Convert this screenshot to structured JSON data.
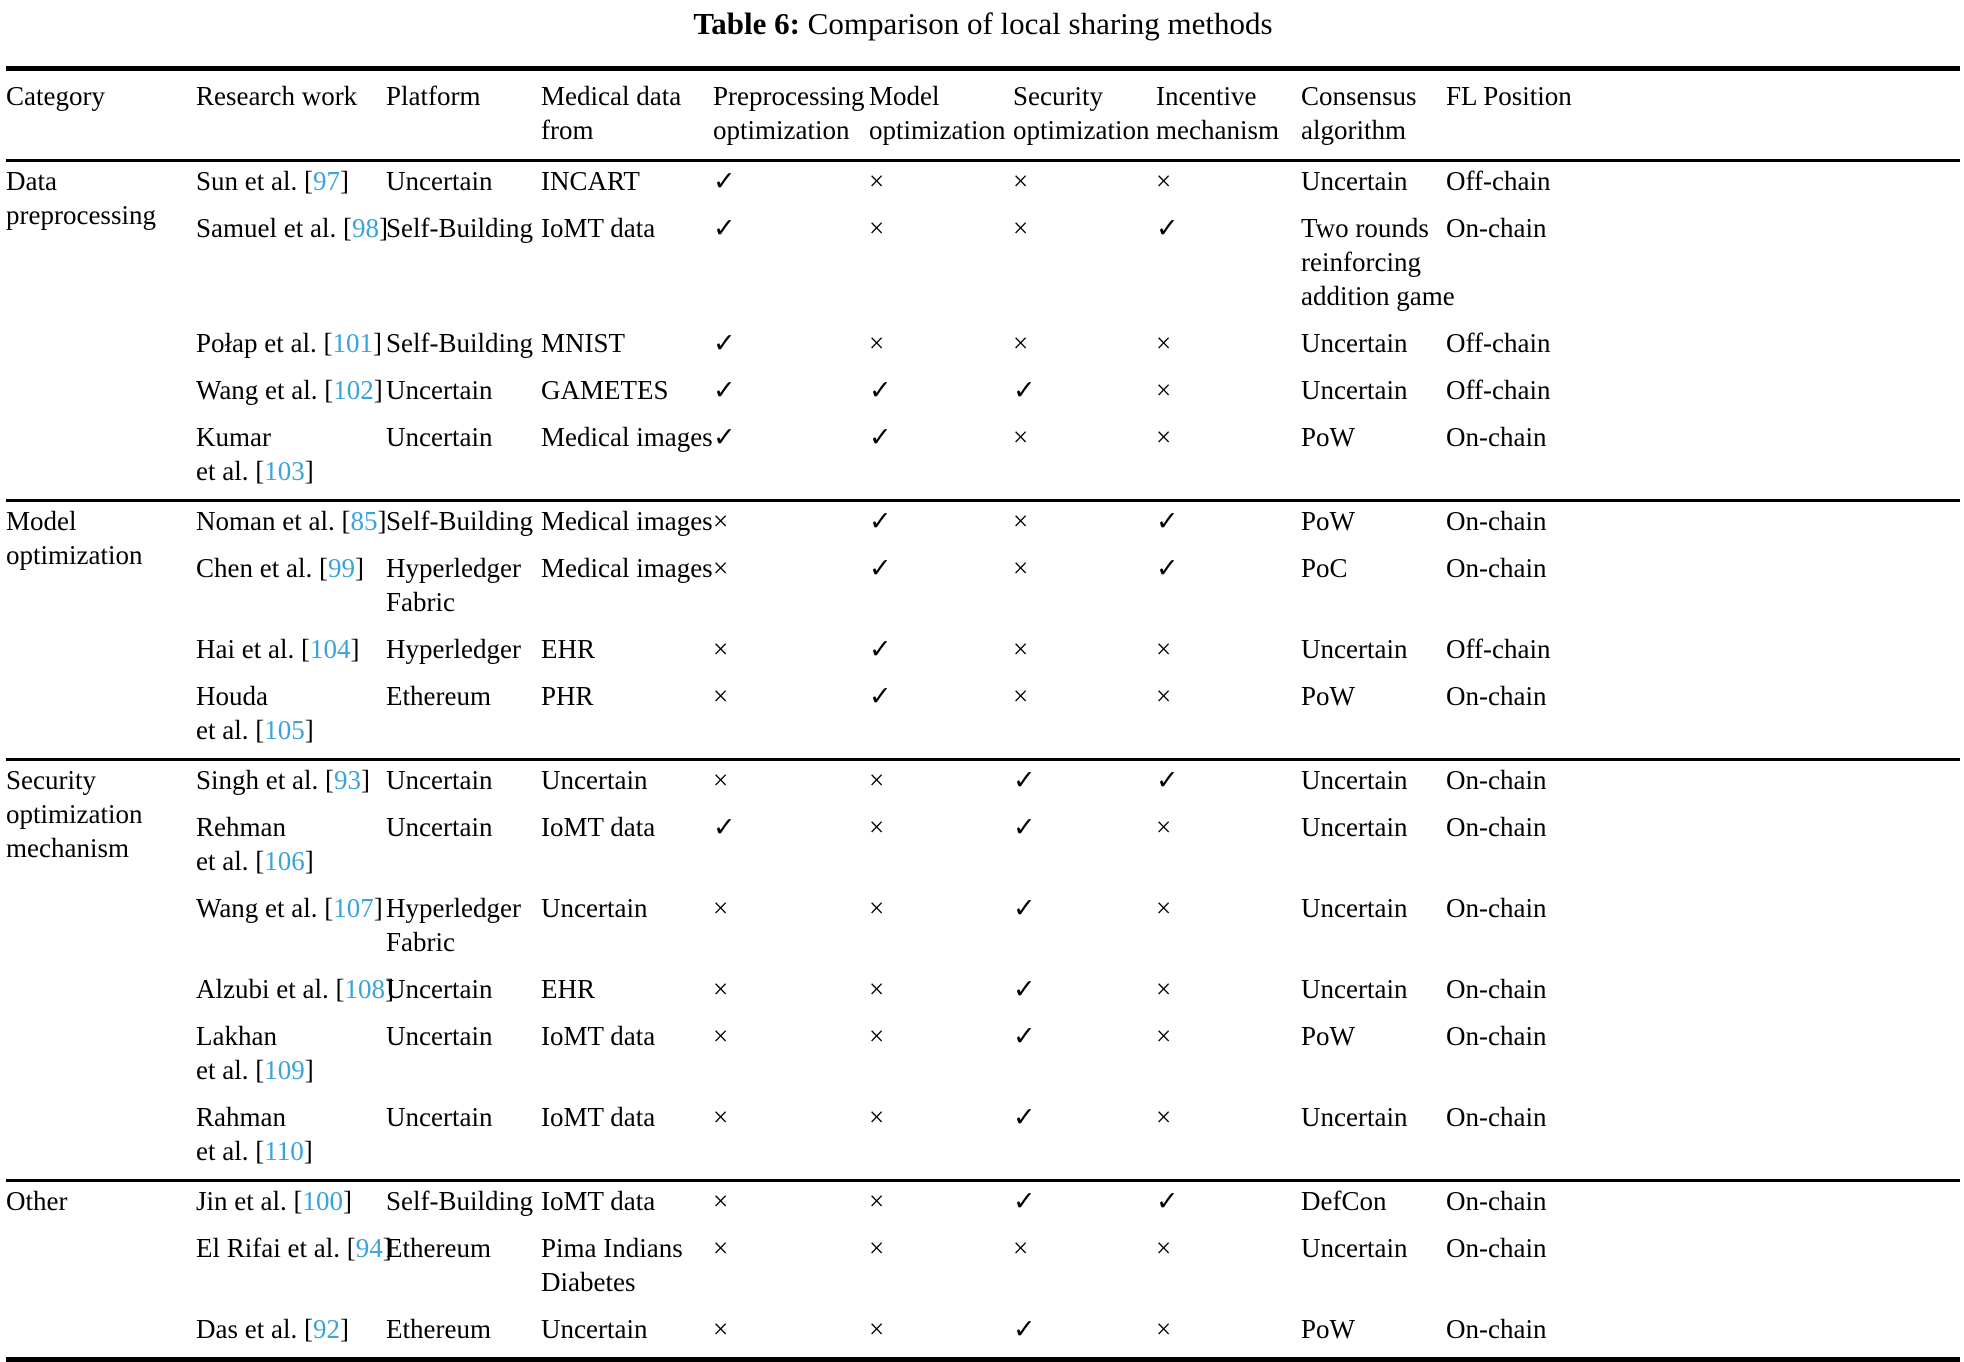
{
  "title": {
    "label": "Table 6:",
    "text": " Comparison of local sharing methods"
  },
  "marks": {
    "check": "✓",
    "cross": "×"
  },
  "colors": {
    "citation_blue": "#3ba3dc",
    "text": "#000000",
    "rule": "#000000"
  },
  "table": {
    "columns": [
      {
        "key": "category",
        "lines": [
          "Category"
        ]
      },
      {
        "key": "research-work",
        "lines": [
          "Research work"
        ]
      },
      {
        "key": "platform",
        "lines": [
          "Platform"
        ]
      },
      {
        "key": "medical-data-from",
        "lines": [
          "Medical data",
          "from"
        ]
      },
      {
        "key": "preprocessing-optimization",
        "lines": [
          "Preprocessing",
          "optimization"
        ]
      },
      {
        "key": "model-optimization",
        "lines": [
          "Model",
          "optimization"
        ]
      },
      {
        "key": "security-optimization",
        "lines": [
          "Security",
          "optimization"
        ]
      },
      {
        "key": "incentive-mechanism",
        "lines": [
          "Incentive",
          "mechanism"
        ]
      },
      {
        "key": "consensus-algorithm",
        "lines": [
          "Consensus",
          "algorithm"
        ]
      },
      {
        "key": "fl-position",
        "lines": [
          "FL Position"
        ]
      }
    ],
    "groups": [
      {
        "category_lines": [
          "Data",
          "preprocessing"
        ],
        "rows": [
          {
            "work_lines": [
              "Sun et al."
            ],
            "ref": "97",
            "platform_lines": [
              "Uncertain"
            ],
            "data_lines": [
              "INCART"
            ],
            "preprocessing": true,
            "model": false,
            "security": false,
            "incentive": false,
            "consensus_lines": [
              "Uncertain"
            ],
            "fl_position": "Off-chain"
          },
          {
            "work_lines": [
              "Samuel et al."
            ],
            "ref": "98",
            "platform_lines": [
              "Self-Building"
            ],
            "data_lines": [
              "IoMT data"
            ],
            "preprocessing": true,
            "model": false,
            "security": false,
            "incentive": true,
            "consensus_lines": [
              "Two rounds",
              "reinforcing",
              "addition game"
            ],
            "fl_position": "On-chain"
          },
          {
            "work_lines": [
              "Połap et al."
            ],
            "ref": "101",
            "platform_lines": [
              "Self-Building"
            ],
            "data_lines": [
              "MNIST"
            ],
            "preprocessing": true,
            "model": false,
            "security": false,
            "incentive": false,
            "consensus_lines": [
              "Uncertain"
            ],
            "fl_position": "Off-chain"
          },
          {
            "work_lines": [
              "Wang et al."
            ],
            "ref": "102",
            "platform_lines": [
              "Uncertain"
            ],
            "data_lines": [
              "GAMETES"
            ],
            "preprocessing": true,
            "model": true,
            "security": true,
            "incentive": false,
            "consensus_lines": [
              "Uncertain"
            ],
            "fl_position": "Off-chain"
          },
          {
            "work_lines": [
              "Kumar",
              "et al."
            ],
            "ref": "103",
            "platform_lines": [
              "Uncertain"
            ],
            "data_lines": [
              "Medical images"
            ],
            "preprocessing": true,
            "model": true,
            "security": false,
            "incentive": false,
            "consensus_lines": [
              "PoW"
            ],
            "fl_position": "On-chain"
          }
        ]
      },
      {
        "category_lines": [
          "Model",
          "optimization"
        ],
        "rows": [
          {
            "work_lines": [
              "Noman et al."
            ],
            "ref": "85",
            "platform_lines": [
              "Self-Building"
            ],
            "data_lines": [
              "Medical images"
            ],
            "preprocessing": false,
            "model": true,
            "security": false,
            "incentive": true,
            "consensus_lines": [
              "PoW"
            ],
            "fl_position": "On-chain"
          },
          {
            "work_lines": [
              "Chen et al."
            ],
            "ref": "99",
            "platform_lines": [
              "Hyperledger",
              "Fabric"
            ],
            "data_lines": [
              "Medical images"
            ],
            "preprocessing": false,
            "model": true,
            "security": false,
            "incentive": true,
            "consensus_lines": [
              "PoC"
            ],
            "fl_position": "On-chain"
          },
          {
            "work_lines": [
              "Hai et al."
            ],
            "ref": "104",
            "platform_lines": [
              "Hyperledger"
            ],
            "data_lines": [
              "EHR"
            ],
            "preprocessing": false,
            "model": true,
            "security": false,
            "incentive": false,
            "consensus_lines": [
              "Uncertain"
            ],
            "fl_position": "Off-chain"
          },
          {
            "work_lines": [
              "Houda",
              "et al."
            ],
            "ref": "105",
            "platform_lines": [
              "Ethereum"
            ],
            "data_lines": [
              "PHR"
            ],
            "preprocessing": false,
            "model": true,
            "security": false,
            "incentive": false,
            "consensus_lines": [
              "PoW"
            ],
            "fl_position": "On-chain"
          }
        ]
      },
      {
        "category_lines": [
          "Security",
          "optimization",
          "mechanism"
        ],
        "rows": [
          {
            "work_lines": [
              "Singh et al."
            ],
            "ref": "93",
            "platform_lines": [
              "Uncertain"
            ],
            "data_lines": [
              "Uncertain"
            ],
            "preprocessing": false,
            "model": false,
            "security": true,
            "incentive": true,
            "consensus_lines": [
              "Uncertain"
            ],
            "fl_position": "On-chain"
          },
          {
            "work_lines": [
              "Rehman",
              "et al."
            ],
            "ref": "106",
            "platform_lines": [
              "Uncertain"
            ],
            "data_lines": [
              "IoMT data"
            ],
            "preprocessing": true,
            "model": false,
            "security": true,
            "incentive": false,
            "consensus_lines": [
              "Uncertain"
            ],
            "fl_position": "On-chain"
          },
          {
            "work_lines": [
              "Wang et al."
            ],
            "ref": "107",
            "platform_lines": [
              "Hyperledger",
              "Fabric"
            ],
            "data_lines": [
              "Uncertain"
            ],
            "preprocessing": false,
            "model": false,
            "security": true,
            "incentive": false,
            "consensus_lines": [
              "Uncertain"
            ],
            "fl_position": "On-chain"
          },
          {
            "work_lines": [
              "Alzubi et al."
            ],
            "ref": "108",
            "platform_lines": [
              "Uncertain"
            ],
            "data_lines": [
              "EHR"
            ],
            "preprocessing": false,
            "model": false,
            "security": true,
            "incentive": false,
            "consensus_lines": [
              "Uncertain"
            ],
            "fl_position": "On-chain"
          },
          {
            "work_lines": [
              "Lakhan",
              "et al."
            ],
            "ref": "109",
            "platform_lines": [
              "Uncertain"
            ],
            "data_lines": [
              "IoMT data"
            ],
            "preprocessing": false,
            "model": false,
            "security": true,
            "incentive": false,
            "consensus_lines": [
              "PoW"
            ],
            "fl_position": "On-chain"
          },
          {
            "work_lines": [
              "Rahman",
              "et al."
            ],
            "ref": "110",
            "platform_lines": [
              "Uncertain"
            ],
            "data_lines": [
              "IoMT data"
            ],
            "preprocessing": false,
            "model": false,
            "security": true,
            "incentive": false,
            "consensus_lines": [
              "Uncertain"
            ],
            "fl_position": "On-chain"
          }
        ]
      },
      {
        "category_lines": [
          "Other"
        ],
        "rows": [
          {
            "work_lines": [
              "Jin et al."
            ],
            "ref": "100",
            "platform_lines": [
              "Self-Building"
            ],
            "data_lines": [
              "IoMT data"
            ],
            "preprocessing": false,
            "model": false,
            "security": true,
            "incentive": true,
            "consensus_lines": [
              "DefCon"
            ],
            "fl_position": "On-chain"
          },
          {
            "work_lines": [
              "El Rifai et al."
            ],
            "ref": "94",
            "platform_lines": [
              "Ethereum"
            ],
            "data_lines": [
              "Pima Indians",
              "Diabetes"
            ],
            "preprocessing": false,
            "model": false,
            "security": false,
            "incentive": false,
            "consensus_lines": [
              "Uncertain"
            ],
            "fl_position": "On-chain"
          },
          {
            "work_lines": [
              "Das et al."
            ],
            "ref": "92",
            "platform_lines": [
              "Ethereum"
            ],
            "data_lines": [
              "Uncertain"
            ],
            "preprocessing": false,
            "model": false,
            "security": true,
            "incentive": false,
            "consensus_lines": [
              "PoW"
            ],
            "fl_position": "On-chain"
          }
        ]
      }
    ]
  }
}
